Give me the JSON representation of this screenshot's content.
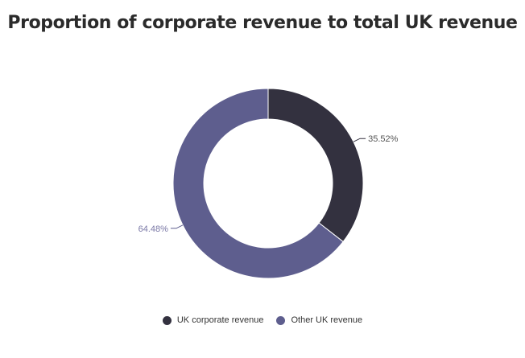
{
  "chart_data": {
    "type": "pie",
    "variant": "donut",
    "title": "Proportion of corporate revenue to total UK revenue",
    "slices": [
      {
        "label": "UK corporate revenue",
        "value": 35.52,
        "display": "35.52%",
        "color": "#33313f"
      },
      {
        "label": "Other UK revenue",
        "value": 64.48,
        "display": "64.48%",
        "color": "#5e5e8e"
      }
    ],
    "legend_position": "bottom"
  }
}
